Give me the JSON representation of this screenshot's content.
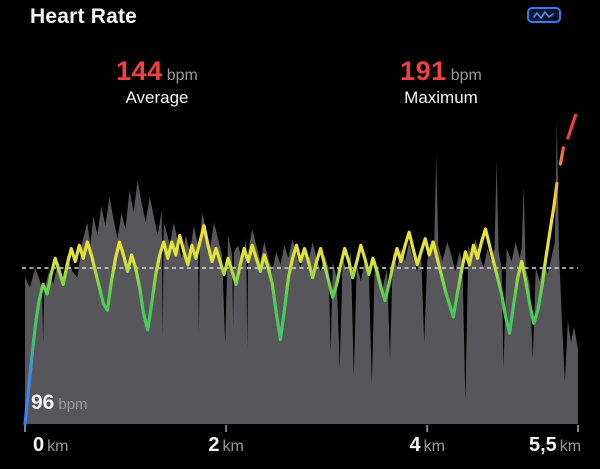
{
  "header": {
    "title": "Heart Rate",
    "badge_icon": "waveform-chart-badge"
  },
  "stats": [
    {
      "value": "144",
      "unit": "bpm",
      "label": "Average"
    },
    {
      "value": "191",
      "unit": "bpm",
      "label": "Maximum"
    }
  ],
  "colors": {
    "background": "#000000",
    "text_white": "#f5f5f7",
    "accent_red": "#ef4046",
    "unit_gray": "#98989d",
    "band_gray": "#57575b",
    "avg_dash": "#d6d6d8",
    "tick": "#7f7f84",
    "badge_blue": "#2e7bf3",
    "badge_wave": "#4b95f7"
  },
  "chart_data": {
    "type": "area+line",
    "title": "Heart Rate over distance",
    "x_unit": "km",
    "x_range": [
      0,
      5.5
    ],
    "y_range_bpm": [
      96,
      192
    ],
    "avg_bpm": 144,
    "max_bpm": 191,
    "min_axis_label": {
      "value": "96",
      "unit": "bpm"
    },
    "x_ticks": [
      {
        "km": 0,
        "label": "0",
        "align": "start"
      },
      {
        "km": 2,
        "label": "2",
        "align": "center"
      },
      {
        "km": 4,
        "label": "4",
        "align": "center"
      },
      {
        "km": 5.5,
        "label": "5,5",
        "align": "end"
      }
    ],
    "zone_gradient": [
      [
        96,
        "#3a7df0"
      ],
      [
        112,
        "#3f8fe2"
      ],
      [
        122,
        "#45c46a"
      ],
      [
        135,
        "#4fcd53"
      ],
      [
        141,
        "#8fd844"
      ],
      [
        146,
        "#dde23a"
      ],
      [
        158,
        "#f1e136"
      ],
      [
        166,
        "#f3cb32"
      ],
      [
        172,
        "#f5a72e"
      ],
      [
        179,
        "#f2703a"
      ],
      [
        184,
        "#f23f3b"
      ],
      [
        192,
        "#f23f3b"
      ]
    ],
    "band": [
      [
        0.0,
        141
      ],
      [
        0.05,
        138
      ],
      [
        0.1,
        144
      ],
      [
        0.15,
        140
      ],
      [
        0.17,
        136
      ],
      [
        0.18,
        121
      ],
      [
        0.19,
        137
      ],
      [
        0.24,
        143
      ],
      [
        0.28,
        139
      ],
      [
        0.33,
        146
      ],
      [
        0.38,
        141
      ],
      [
        0.42,
        148
      ],
      [
        0.47,
        143
      ],
      [
        0.52,
        141
      ],
      [
        0.57,
        152
      ],
      [
        0.62,
        158
      ],
      [
        0.65,
        151
      ],
      [
        0.68,
        160
      ],
      [
        0.72,
        154
      ],
      [
        0.76,
        163
      ],
      [
        0.8,
        157
      ],
      [
        0.84,
        166
      ],
      [
        0.88,
        159
      ],
      [
        0.92,
        153
      ],
      [
        0.96,
        161
      ],
      [
        1.0,
        156
      ],
      [
        1.04,
        168
      ],
      [
        1.08,
        161
      ],
      [
        1.12,
        171
      ],
      [
        1.16,
        164
      ],
      [
        1.2,
        158
      ],
      [
        1.24,
        166
      ],
      [
        1.28,
        160
      ],
      [
        1.32,
        154
      ],
      [
        1.36,
        162
      ],
      [
        1.37,
        123
      ],
      [
        1.38,
        158
      ],
      [
        1.4,
        156
      ],
      [
        1.44,
        151
      ],
      [
        1.48,
        158
      ],
      [
        1.52,
        152
      ],
      [
        1.56,
        147
      ],
      [
        1.6,
        154
      ],
      [
        1.64,
        149
      ],
      [
        1.68,
        157
      ],
      [
        1.72,
        151
      ],
      [
        1.73,
        124
      ],
      [
        1.74,
        152
      ],
      [
        1.76,
        161
      ],
      [
        1.8,
        156
      ],
      [
        1.84,
        150
      ],
      [
        1.88,
        158
      ],
      [
        1.92,
        153
      ],
      [
        1.96,
        148
      ],
      [
        1.99,
        121
      ],
      [
        2.02,
        154
      ],
      [
        2.06,
        148
      ],
      [
        2.07,
        126
      ],
      [
        2.08,
        149
      ],
      [
        2.12,
        151
      ],
      [
        2.16,
        146
      ],
      [
        2.2,
        153
      ],
      [
        2.21,
        119
      ],
      [
        2.22,
        149
      ],
      [
        2.26,
        156
      ],
      [
        2.3,
        151
      ],
      [
        2.34,
        146
      ],
      [
        2.38,
        152
      ],
      [
        2.42,
        147
      ],
      [
        2.46,
        143
      ],
      [
        2.5,
        149
      ],
      [
        2.54,
        145
      ],
      [
        2.58,
        151
      ],
      [
        2.62,
        147
      ],
      [
        2.66,
        153
      ],
      [
        2.7,
        148
      ],
      [
        2.74,
        144
      ],
      [
        2.78,
        150
      ],
      [
        2.82,
        146
      ],
      [
        2.86,
        152
      ],
      [
        2.9,
        147
      ],
      [
        2.94,
        143
      ],
      [
        2.98,
        148
      ],
      [
        3.02,
        144
      ],
      [
        3.04,
        118
      ],
      [
        3.06,
        146
      ],
      [
        3.1,
        141
      ],
      [
        3.13,
        113
      ],
      [
        3.16,
        147
      ],
      [
        3.2,
        143
      ],
      [
        3.24,
        149
      ],
      [
        3.27,
        111
      ],
      [
        3.3,
        145
      ],
      [
        3.34,
        140
      ],
      [
        3.38,
        146
      ],
      [
        3.42,
        142
      ],
      [
        3.45,
        108
      ],
      [
        3.48,
        147
      ],
      [
        3.52,
        143
      ],
      [
        3.56,
        138
      ],
      [
        3.6,
        144
      ],
      [
        3.63,
        116
      ],
      [
        3.66,
        149
      ],
      [
        3.7,
        144
      ],
      [
        3.74,
        150
      ],
      [
        3.78,
        146
      ],
      [
        3.82,
        152
      ],
      [
        3.86,
        147
      ],
      [
        3.9,
        143
      ],
      [
        3.94,
        149
      ],
      [
        3.97,
        121
      ],
      [
        4.0,
        146
      ],
      [
        4.04,
        153
      ],
      [
        4.07,
        150
      ],
      [
        4.09,
        179
      ],
      [
        4.11,
        151
      ],
      [
        4.15,
        146
      ],
      [
        4.2,
        152
      ],
      [
        4.24,
        148
      ],
      [
        4.28,
        143
      ],
      [
        4.32,
        149
      ],
      [
        4.35,
        146
      ],
      [
        4.38,
        103
      ],
      [
        4.41,
        151
      ],
      [
        4.44,
        147
      ],
      [
        4.48,
        153
      ],
      [
        4.52,
        148
      ],
      [
        4.56,
        144
      ],
      [
        4.6,
        150
      ],
      [
        4.64,
        146
      ],
      [
        4.67,
        150
      ],
      [
        4.69,
        177
      ],
      [
        4.71,
        149
      ],
      [
        4.74,
        144
      ],
      [
        4.76,
        113
      ],
      [
        4.79,
        150
      ],
      [
        4.84,
        146
      ],
      [
        4.88,
        152
      ],
      [
        4.92,
        147
      ],
      [
        4.94,
        150
      ],
      [
        4.96,
        169
      ],
      [
        4.98,
        144
      ],
      [
        5.02,
        139
      ],
      [
        5.05,
        116
      ],
      [
        5.08,
        144
      ],
      [
        5.12,
        140
      ],
      [
        5.16,
        146
      ],
      [
        5.2,
        142
      ],
      [
        5.24,
        148
      ],
      [
        5.27,
        152
      ],
      [
        5.29,
        190
      ],
      [
        5.31,
        150
      ],
      [
        5.34,
        128
      ],
      [
        5.37,
        109
      ],
      [
        5.4,
        128
      ],
      [
        5.43,
        121
      ],
      [
        5.46,
        126
      ],
      [
        5.5,
        119
      ]
    ],
    "line": [
      [
        0.0,
        96
      ],
      [
        0.01,
        99
      ],
      [
        0.03,
        105
      ],
      [
        0.05,
        111
      ],
      [
        0.08,
        120
      ],
      [
        0.11,
        128
      ],
      [
        0.14,
        134
      ],
      [
        0.18,
        139
      ],
      [
        0.22,
        136
      ],
      [
        0.26,
        142
      ],
      [
        0.3,
        147
      ],
      [
        0.34,
        143
      ],
      [
        0.38,
        139
      ],
      [
        0.42,
        145
      ],
      [
        0.46,
        150
      ],
      [
        0.5,
        146
      ],
      [
        0.54,
        151
      ],
      [
        0.58,
        147
      ],
      [
        0.62,
        152
      ],
      [
        0.66,
        148
      ],
      [
        0.7,
        143
      ],
      [
        0.74,
        138
      ],
      [
        0.78,
        133
      ],
      [
        0.82,
        131
      ],
      [
        0.86,
        140
      ],
      [
        0.9,
        147
      ],
      [
        0.94,
        152
      ],
      [
        0.98,
        148
      ],
      [
        1.02,
        143
      ],
      [
        1.06,
        148
      ],
      [
        1.1,
        144
      ],
      [
        1.14,
        138
      ],
      [
        1.18,
        130
      ],
      [
        1.22,
        125
      ],
      [
        1.26,
        133
      ],
      [
        1.3,
        142
      ],
      [
        1.34,
        148
      ],
      [
        1.38,
        152
      ],
      [
        1.42,
        147
      ],
      [
        1.46,
        152
      ],
      [
        1.5,
        148
      ],
      [
        1.54,
        154
      ],
      [
        1.58,
        149
      ],
      [
        1.62,
        145
      ],
      [
        1.66,
        151
      ],
      [
        1.7,
        147
      ],
      [
        1.74,
        152
      ],
      [
        1.78,
        157
      ],
      [
        1.82,
        151
      ],
      [
        1.86,
        146
      ],
      [
        1.9,
        150
      ],
      [
        1.94,
        146
      ],
      [
        1.98,
        142
      ],
      [
        2.02,
        147
      ],
      [
        2.06,
        143
      ],
      [
        2.1,
        139
      ],
      [
        2.14,
        145
      ],
      [
        2.18,
        150
      ],
      [
        2.22,
        146
      ],
      [
        2.26,
        151
      ],
      [
        2.3,
        147
      ],
      [
        2.34,
        143
      ],
      [
        2.38,
        148
      ],
      [
        2.42,
        144
      ],
      [
        2.46,
        139
      ],
      [
        2.5,
        130
      ],
      [
        2.54,
        122
      ],
      [
        2.58,
        131
      ],
      [
        2.62,
        141
      ],
      [
        2.66,
        147
      ],
      [
        2.7,
        151
      ],
      [
        2.74,
        146
      ],
      [
        2.78,
        150
      ],
      [
        2.82,
        146
      ],
      [
        2.86,
        141
      ],
      [
        2.9,
        146
      ],
      [
        2.94,
        150
      ],
      [
        2.98,
        145
      ],
      [
        3.02,
        140
      ],
      [
        3.06,
        135
      ],
      [
        3.1,
        139
      ],
      [
        3.14,
        145
      ],
      [
        3.18,
        150
      ],
      [
        3.22,
        146
      ],
      [
        3.26,
        141
      ],
      [
        3.3,
        146
      ],
      [
        3.34,
        151
      ],
      [
        3.38,
        147
      ],
      [
        3.42,
        142
      ],
      [
        3.46,
        147
      ],
      [
        3.5,
        143
      ],
      [
        3.54,
        138
      ],
      [
        3.58,
        134
      ],
      [
        3.62,
        139
      ],
      [
        3.66,
        145
      ],
      [
        3.7,
        150
      ],
      [
        3.74,
        146
      ],
      [
        3.78,
        151
      ],
      [
        3.82,
        155
      ],
      [
        3.86,
        150
      ],
      [
        3.9,
        145
      ],
      [
        3.94,
        149
      ],
      [
        3.98,
        153
      ],
      [
        4.02,
        148
      ],
      [
        4.06,
        152
      ],
      [
        4.1,
        147
      ],
      [
        4.14,
        142
      ],
      [
        4.18,
        137
      ],
      [
        4.22,
        133
      ],
      [
        4.26,
        129
      ],
      [
        4.3,
        136
      ],
      [
        4.34,
        143
      ],
      [
        4.38,
        149
      ],
      [
        4.42,
        145
      ],
      [
        4.46,
        151
      ],
      [
        4.5,
        147
      ],
      [
        4.54,
        152
      ],
      [
        4.58,
        156
      ],
      [
        4.62,
        151
      ],
      [
        4.66,
        146
      ],
      [
        4.7,
        141
      ],
      [
        4.74,
        136
      ],
      [
        4.78,
        129
      ],
      [
        4.82,
        124
      ],
      [
        4.86,
        133
      ],
      [
        4.9,
        141
      ],
      [
        4.94,
        146
      ],
      [
        4.98,
        140
      ],
      [
        5.02,
        133
      ],
      [
        5.06,
        127
      ],
      [
        5.1,
        131
      ],
      [
        5.14,
        138
      ],
      [
        5.18,
        147
      ],
      [
        5.22,
        155
      ],
      [
        5.26,
        163
      ],
      [
        5.29,
        170
      ]
    ],
    "tail_dashes": [
      [
        [
          5.325,
          176
        ],
        [
          5.355,
          181
        ]
      ],
      [
        [
          5.4,
          184
        ],
        [
          5.475,
          191
        ]
      ]
    ]
  }
}
